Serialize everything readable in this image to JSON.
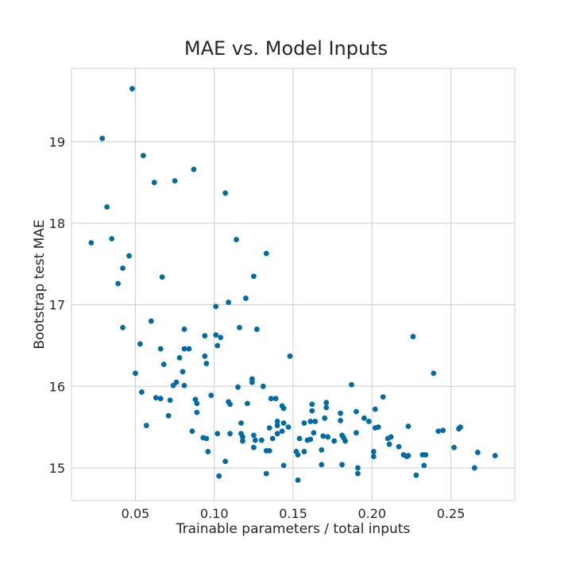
{
  "chart_data": {
    "type": "scatter",
    "title": "MAE vs. Model Inputs",
    "xlabel": "Trainable parameters / total inputs",
    "ylabel": "Bootstrap test MAE",
    "xlim": [
      0.0095,
      0.2905
    ],
    "ylim": [
      14.6,
      19.9
    ],
    "xticks": [
      0.05,
      0.1,
      0.15,
      0.2,
      0.25
    ],
    "xtick_labels": [
      "0.05",
      "0.10",
      "0.15",
      "0.20",
      "0.25"
    ],
    "yticks": [
      15,
      16,
      17,
      18,
      19
    ],
    "ytick_labels": [
      "15",
      "16",
      "17",
      "18",
      "19"
    ],
    "grid": true,
    "color": "#006ba4",
    "points": [
      [
        0.048,
        19.65
      ],
      [
        0.029,
        19.04
      ],
      [
        0.055,
        18.83
      ],
      [
        0.087,
        18.66
      ],
      [
        0.062,
        18.5
      ],
      [
        0.075,
        18.52
      ],
      [
        0.107,
        18.37
      ],
      [
        0.032,
        18.2
      ],
      [
        0.035,
        17.81
      ],
      [
        0.022,
        17.76
      ],
      [
        0.114,
        17.8
      ],
      [
        0.046,
        17.6
      ],
      [
        0.133,
        17.63
      ],
      [
        0.042,
        17.45
      ],
      [
        0.039,
        17.26
      ],
      [
        0.067,
        17.34
      ],
      [
        0.125,
        17.35
      ],
      [
        0.12,
        17.08
      ],
      [
        0.109,
        17.03
      ],
      [
        0.101,
        16.98
      ],
      [
        0.06,
        16.8
      ],
      [
        0.042,
        16.72
      ],
      [
        0.081,
        16.7
      ],
      [
        0.116,
        16.72
      ],
      [
        0.127,
        16.7
      ],
      [
        0.094,
        16.62
      ],
      [
        0.101,
        16.63
      ],
      [
        0.104,
        16.6
      ],
      [
        0.226,
        16.61
      ],
      [
        0.053,
        16.52
      ],
      [
        0.066,
        16.46
      ],
      [
        0.081,
        16.46
      ],
      [
        0.084,
        16.46
      ],
      [
        0.102,
        16.5
      ],
      [
        0.094,
        16.37
      ],
      [
        0.148,
        16.37
      ],
      [
        0.078,
        16.35
      ],
      [
        0.068,
        16.27
      ],
      [
        0.095,
        16.28
      ],
      [
        0.05,
        16.16
      ],
      [
        0.08,
        16.18
      ],
      [
        0.239,
        16.16
      ],
      [
        0.124,
        16.09
      ],
      [
        0.124,
        16.05
      ],
      [
        0.076,
        16.05
      ],
      [
        0.074,
        16.01
      ],
      [
        0.081,
        16.01
      ],
      [
        0.115,
        15.99
      ],
      [
        0.131,
        16.0
      ],
      [
        0.187,
        16.02
      ],
      [
        0.054,
        15.93
      ],
      [
        0.063,
        15.86
      ],
      [
        0.066,
        15.85
      ],
      [
        0.098,
        15.89
      ],
      [
        0.136,
        15.85
      ],
      [
        0.139,
        15.85
      ],
      [
        0.207,
        15.87
      ],
      [
        0.072,
        15.83
      ],
      [
        0.088,
        15.84
      ],
      [
        0.109,
        15.81
      ],
      [
        0.11,
        15.78
      ],
      [
        0.121,
        15.79
      ],
      [
        0.143,
        15.76
      ],
      [
        0.144,
        15.73
      ],
      [
        0.162,
        15.78
      ],
      [
        0.171,
        15.8
      ],
      [
        0.171,
        15.74
      ],
      [
        0.089,
        15.79
      ],
      [
        0.089,
        15.68
      ],
      [
        0.162,
        15.7
      ],
      [
        0.18,
        15.67
      ],
      [
        0.19,
        15.69
      ],
      [
        0.202,
        15.72
      ],
      [
        0.071,
        15.64
      ],
      [
        0.117,
        15.55
      ],
      [
        0.14,
        15.57
      ],
      [
        0.144,
        15.55
      ],
      [
        0.14,
        15.52
      ],
      [
        0.147,
        15.5
      ],
      [
        0.157,
        15.55
      ],
      [
        0.161,
        15.57
      ],
      [
        0.164,
        15.57
      ],
      [
        0.17,
        15.61
      ],
      [
        0.18,
        15.58
      ],
      [
        0.195,
        15.61
      ],
      [
        0.198,
        15.57
      ],
      [
        0.202,
        15.49
      ],
      [
        0.204,
        15.5
      ],
      [
        0.223,
        15.51
      ],
      [
        0.242,
        15.45
      ],
      [
        0.245,
        15.46
      ],
      [
        0.255,
        15.48
      ],
      [
        0.256,
        15.5
      ],
      [
        0.057,
        15.52
      ],
      [
        0.086,
        15.45
      ],
      [
        0.11,
        15.42
      ],
      [
        0.102,
        15.42
      ],
      [
        0.117,
        15.42
      ],
      [
        0.118,
        15.38
      ],
      [
        0.125,
        15.4
      ],
      [
        0.093,
        15.37
      ],
      [
        0.095,
        15.36
      ],
      [
        0.118,
        15.33
      ],
      [
        0.126,
        15.34
      ],
      [
        0.13,
        15.34
      ],
      [
        0.135,
        15.49
      ],
      [
        0.137,
        15.36
      ],
      [
        0.14,
        15.42
      ],
      [
        0.143,
        15.45
      ],
      [
        0.154,
        15.36
      ],
      [
        0.159,
        15.34
      ],
      [
        0.161,
        15.35
      ],
      [
        0.163,
        15.43
      ],
      [
        0.169,
        15.39
      ],
      [
        0.172,
        15.38
      ],
      [
        0.176,
        15.33
      ],
      [
        0.181,
        15.4
      ],
      [
        0.182,
        15.37
      ],
      [
        0.183,
        15.33
      ],
      [
        0.19,
        15.43
      ],
      [
        0.21,
        15.36
      ],
      [
        0.212,
        15.38
      ],
      [
        0.211,
        15.29
      ],
      [
        0.217,
        15.26
      ],
      [
        0.096,
        15.2
      ],
      [
        0.125,
        15.25
      ],
      [
        0.133,
        15.21
      ],
      [
        0.135,
        15.21
      ],
      [
        0.152,
        15.2
      ],
      [
        0.153,
        15.16
      ],
      [
        0.157,
        15.2
      ],
      [
        0.168,
        15.22
      ],
      [
        0.201,
        15.14
      ],
      [
        0.201,
        15.2
      ],
      [
        0.22,
        15.16
      ],
      [
        0.222,
        15.14
      ],
      [
        0.223,
        15.15
      ],
      [
        0.232,
        15.16
      ],
      [
        0.234,
        15.16
      ],
      [
        0.252,
        15.25
      ],
      [
        0.267,
        15.19
      ],
      [
        0.278,
        15.15
      ],
      [
        0.107,
        15.08
      ],
      [
        0.144,
        15.03
      ],
      [
        0.168,
        15.04
      ],
      [
        0.181,
        15.04
      ],
      [
        0.191,
        15.0
      ],
      [
        0.233,
        15.03
      ],
      [
        0.265,
        15.0
      ],
      [
        0.103,
        14.9
      ],
      [
        0.133,
        14.93
      ],
      [
        0.153,
        14.85
      ],
      [
        0.191,
        14.93
      ],
      [
        0.228,
        14.91
      ]
    ]
  }
}
